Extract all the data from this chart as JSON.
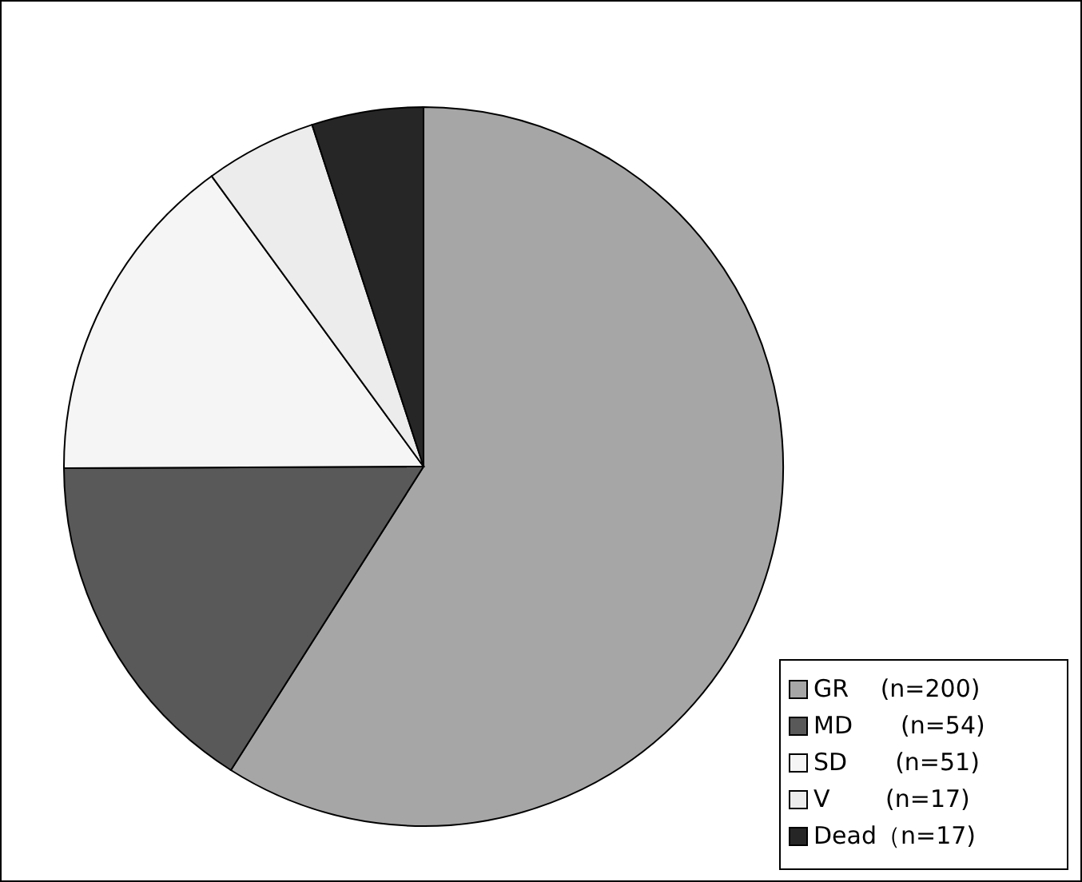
{
  "chart_data": {
    "type": "pie",
    "categories": [
      "GR　 (n=200)",
      "MD　　(n=54)",
      "SD　　(n=51)",
      "V　　 (n=17)",
      "Dead（n=17)"
    ],
    "values": [
      200,
      54,
      51,
      17,
      17
    ],
    "colors": [
      "#a6a6a6",
      "#595959",
      "#f5f5f5",
      "#ececec",
      "#262626"
    ],
    "legend": "bottom right"
  }
}
